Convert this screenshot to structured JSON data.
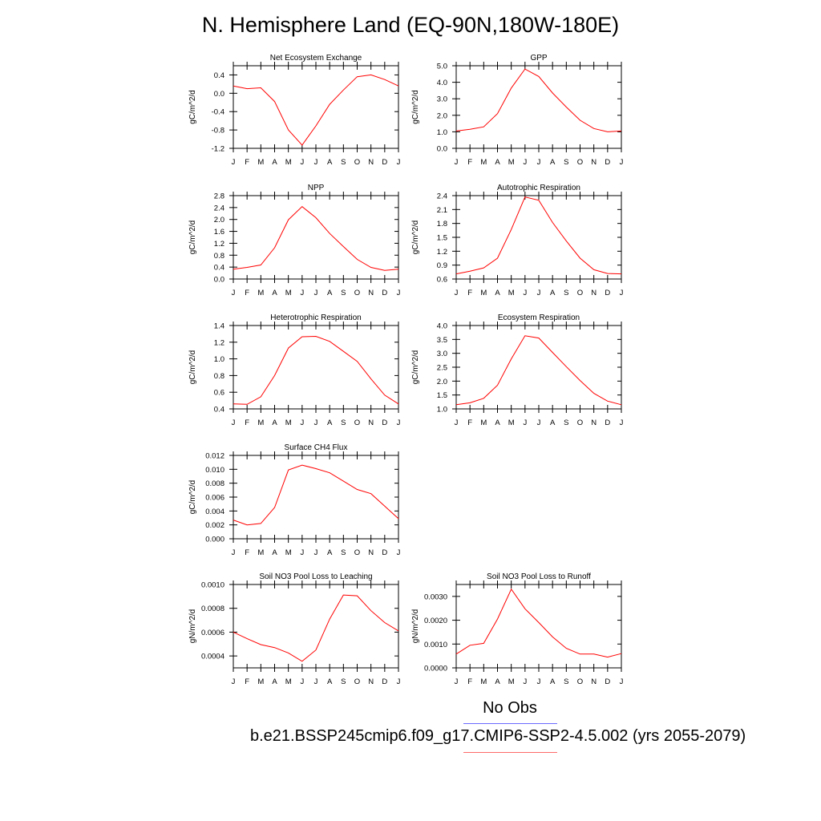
{
  "title": "N. Hemisphere Land (EQ-90N,180W-180E)",
  "legend": {
    "obs_label": "No Obs",
    "case_label": "b.e21.BSSP245cmip6.f09_g17.CMIP6-SSP2-4.5.002 (yrs 2055-2079)",
    "obs_color": "#6a6aff",
    "case_color": "#ff0000"
  },
  "chart_data": [
    {
      "type": "line",
      "title": "Net Ecosystem Exchange",
      "ylabel": "gC/m^2/d",
      "categories": [
        "J",
        "F",
        "M",
        "A",
        "M",
        "J",
        "J",
        "A",
        "S",
        "O",
        "N",
        "D",
        "J"
      ],
      "ylim": [
        -1.2,
        0.6
      ],
      "yticks": [
        "0.4",
        "0.0",
        "-0.4",
        "-0.8",
        "-1.2"
      ],
      "series": [
        {
          "color": "#ff0000",
          "values": [
            0.16,
            0.1,
            0.12,
            -0.18,
            -0.8,
            -1.13,
            -0.71,
            -0.24,
            0.07,
            0.36,
            0.4,
            0.3,
            0.16
          ]
        }
      ]
    },
    {
      "type": "line",
      "title": "GPP",
      "ylabel": "gC/m^2/d",
      "categories": [
        "J",
        "F",
        "M",
        "A",
        "M",
        "J",
        "J",
        "A",
        "S",
        "O",
        "N",
        "D",
        "J"
      ],
      "ylim": [
        0,
        5
      ],
      "yticks": [
        "5.0",
        "4.0",
        "3.0",
        "2.0",
        "1.0",
        "0.0"
      ],
      "series": [
        {
          "color": "#ff0000",
          "values": [
            1.05,
            1.15,
            1.3,
            2.1,
            3.65,
            4.8,
            4.35,
            3.35,
            2.5,
            1.7,
            1.2,
            1.0,
            1.05
          ]
        }
      ]
    },
    {
      "type": "line",
      "title": "NPP",
      "ylabel": "gC/m^2/d",
      "categories": [
        "J",
        "F",
        "M",
        "A",
        "M",
        "J",
        "J",
        "A",
        "S",
        "O",
        "N",
        "D",
        "J"
      ],
      "ylim": [
        0,
        2.8
      ],
      "yticks": [
        "2.8",
        "2.4",
        "2.0",
        "1.6",
        "1.2",
        "0.8",
        "0.4",
        "0.0"
      ],
      "series": [
        {
          "color": "#ff0000",
          "values": [
            0.33,
            0.39,
            0.47,
            1.05,
            1.99,
            2.43,
            2.06,
            1.53,
            1.09,
            0.66,
            0.39,
            0.29,
            0.33
          ]
        }
      ]
    },
    {
      "type": "line",
      "title": "Autotrophic Respiration",
      "ylabel": "gC/m^2/d",
      "categories": [
        "J",
        "F",
        "M",
        "A",
        "M",
        "J",
        "J",
        "A",
        "S",
        "O",
        "N",
        "D",
        "J"
      ],
      "ylim": [
        0.6,
        2.4
      ],
      "yticks": [
        "2.4",
        "2.1",
        "1.8",
        "1.5",
        "1.2",
        "0.9",
        "0.6"
      ],
      "series": [
        {
          "color": "#ff0000",
          "values": [
            0.71,
            0.77,
            0.84,
            1.05,
            1.67,
            2.37,
            2.3,
            1.82,
            1.42,
            1.05,
            0.8,
            0.72,
            0.71
          ]
        }
      ]
    },
    {
      "type": "line",
      "title": "Heterotrophic Respiration",
      "ylabel": "gC/m^2/d",
      "categories": [
        "J",
        "F",
        "M",
        "A",
        "M",
        "J",
        "J",
        "A",
        "S",
        "O",
        "N",
        "D",
        "J"
      ],
      "ylim": [
        0.4,
        1.4
      ],
      "yticks": [
        "1.4",
        "1.2",
        "1.0",
        "0.8",
        "0.6",
        "0.4"
      ],
      "series": [
        {
          "color": "#ff0000",
          "values": [
            0.46,
            0.455,
            0.545,
            0.8,
            1.13,
            1.265,
            1.27,
            1.21,
            1.09,
            0.97,
            0.76,
            0.565,
            0.46
          ]
        }
      ]
    },
    {
      "type": "line",
      "title": "Ecosystem Respiration",
      "ylabel": "gC/m^2/d",
      "categories": [
        "J",
        "F",
        "M",
        "A",
        "M",
        "J",
        "J",
        "A",
        "S",
        "O",
        "N",
        "D",
        "J"
      ],
      "ylim": [
        1.0,
        4.0
      ],
      "yticks": [
        "4.0",
        "3.5",
        "3.0",
        "2.5",
        "2.0",
        "1.5",
        "1.0"
      ],
      "series": [
        {
          "color": "#ff0000",
          "values": [
            1.15,
            1.22,
            1.38,
            1.85,
            2.8,
            3.63,
            3.55,
            3.03,
            2.52,
            2.02,
            1.56,
            1.28,
            1.15
          ]
        }
      ]
    },
    {
      "type": "line",
      "title": "Surface CH4 Flux",
      "ylabel": "gC/m^2/d",
      "categories": [
        "J",
        "F",
        "M",
        "A",
        "M",
        "J",
        "J",
        "A",
        "S",
        "O",
        "N",
        "D",
        "J"
      ],
      "ylim": [
        0,
        0.012
      ],
      "yticks": [
        "0.012",
        "0.010",
        "0.008",
        "0.006",
        "0.004",
        "0.002",
        "0.000"
      ],
      "series": [
        {
          "color": "#ff0000",
          "values": [
            0.0027,
            0.002,
            0.0022,
            0.0045,
            0.0099,
            0.0106,
            0.0101,
            0.0095,
            0.0083,
            0.0071,
            0.0065,
            0.0047,
            0.0029
          ]
        }
      ]
    },
    {
      "type": "line",
      "title": "Soil NO3 Pool Loss to Leaching",
      "ylabel": "gN/m^2/d",
      "categories": [
        "J",
        "F",
        "M",
        "A",
        "M",
        "J",
        "J",
        "A",
        "S",
        "O",
        "N",
        "D",
        "J"
      ],
      "ylim": [
        0.0003,
        0.001
      ],
      "yticks": [
        "0.0010",
        "0.0008",
        "0.0006",
        "0.0004"
      ],
      "series": [
        {
          "color": "#ff0000",
          "values": [
            0.0006,
            0.000545,
            0.000495,
            0.00047,
            0.000425,
            0.000355,
            0.00045,
            0.00071,
            0.000912,
            0.000905,
            0.00078,
            0.00068,
            0.00061
          ]
        }
      ]
    },
    {
      "type": "line",
      "title": "Soil NO3 Pool Loss to Runoff",
      "ylabel": "gN/m^2/d",
      "categories": [
        "J",
        "F",
        "M",
        "A",
        "M",
        "J",
        "J",
        "A",
        "S",
        "O",
        "N",
        "D",
        "J"
      ],
      "ylim": [
        0,
        0.0035
      ],
      "yticks": [
        "0.0030",
        "0.0020",
        "0.0010",
        "0.0000"
      ],
      "series": [
        {
          "color": "#ff0000",
          "values": [
            0.00058,
            0.00095,
            0.00103,
            0.00205,
            0.0033,
            0.00248,
            0.0019,
            0.0013,
            0.00082,
            0.00058,
            0.00058,
            0.00045,
            0.0006
          ]
        }
      ]
    }
  ]
}
